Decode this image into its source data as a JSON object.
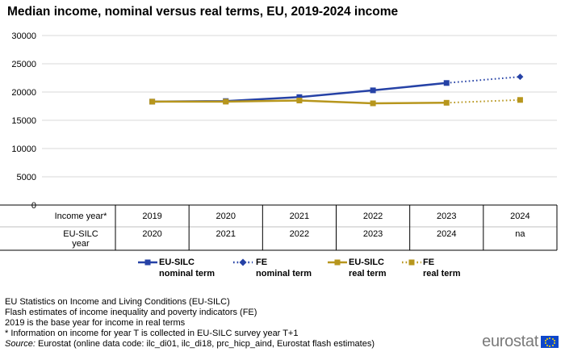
{
  "title": "Median income, nominal versus real terms, EU, 2019-2024 income",
  "row_labels": {
    "income_year": "Income year*",
    "silc_year_line1": "EU-SILC",
    "silc_year_line2": "year"
  },
  "legend": [
    {
      "line1": "EU-SILC",
      "line2": "nominal term",
      "color": "#2642a6",
      "style": "solid",
      "marker": "square"
    },
    {
      "line1": "FE",
      "line2": "nominal term",
      "color": "#2642a6",
      "style": "dotted",
      "marker": "diamond"
    },
    {
      "line1": "EU-SILC",
      "line2": "real term",
      "color": "#b7961d",
      "style": "solid",
      "marker": "square"
    },
    {
      "line1": "FE",
      "line2": "real term",
      "color": "#b7961d",
      "style": "dotted",
      "marker": "square"
    }
  ],
  "notes": [
    "EU Statistics on Income and Living Conditions (EU-SILC)",
    "Flash estimates of income inequality and poverty indicators (FE)",
    "2019 is the base year for income in real terms",
    "* Information on income for year T is collected in EU-SILC survey year T+1"
  ],
  "source_label": "Source:",
  "source_text": " Eurostat (online data code: ilc_di01, ilc_di18, prc_hicp_aind, Eurostat flash estimates)",
  "logo_text": "eurostat",
  "chart_data": {
    "type": "line",
    "title": "Median income, nominal versus real terms, EU, 2019-2024 income",
    "categories": [
      "2019",
      "2020",
      "2021",
      "2022",
      "2023",
      "2024"
    ],
    "silc_years": [
      "2020",
      "2021",
      "2022",
      "2023",
      "2024",
      "na"
    ],
    "yticks": [
      0,
      5000,
      10000,
      15000,
      20000,
      25000,
      30000
    ],
    "ytick_labels": [
      "0",
      "5000",
      "10000",
      "15000",
      "20000",
      "25000",
      "30000"
    ],
    "ylim": [
      0,
      30000
    ],
    "grid": true,
    "legend_position": "bottom",
    "series": [
      {
        "name": "EU-SILC nominal term",
        "color": "#2642a6",
        "style": "solid",
        "marker": "square",
        "values": [
          18300,
          18400,
          19100,
          20300,
          21600,
          null
        ]
      },
      {
        "name": "FE nominal term",
        "color": "#2642a6",
        "style": "dotted",
        "marker": "diamond",
        "values": [
          null,
          null,
          null,
          null,
          21600,
          22700
        ]
      },
      {
        "name": "EU-SILC real term",
        "color": "#b7961d",
        "style": "solid",
        "marker": "square",
        "values": [
          18300,
          18300,
          18500,
          18000,
          18100,
          null
        ]
      },
      {
        "name": "FE real term",
        "color": "#b7961d",
        "style": "dotted",
        "marker": "square",
        "values": [
          null,
          null,
          null,
          null,
          18100,
          18600
        ]
      }
    ]
  }
}
